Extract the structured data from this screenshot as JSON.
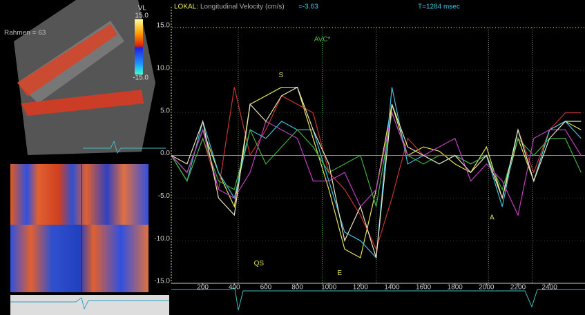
{
  "chart_data": {
    "type": "line",
    "header": {
      "mode": "LOKAL:",
      "measure": "Longitudinal Velocity (cm/s)",
      "reading": "=-3.63",
      "time": "T=1284 msec"
    },
    "x": [
      0,
      100,
      200,
      300,
      400,
      500,
      600,
      700,
      800,
      900,
      1000,
      1100,
      1200,
      1300,
      1400,
      1500,
      1600,
      1700,
      1800,
      1900,
      2000,
      2100,
      2200,
      2300,
      2400,
      2500,
      2600
    ],
    "series": [
      {
        "color": "#e6e65a",
        "values": [
          0,
          -2,
          3,
          -2,
          -6,
          6,
          7,
          8,
          8,
          2,
          -4,
          -11,
          -12,
          -4,
          6,
          0,
          1,
          0.5,
          -1,
          -2,
          1,
          -5,
          2,
          -3,
          3,
          4,
          3
        ]
      },
      {
        "color": "#c83232",
        "values": [
          0,
          -3,
          2,
          -4,
          8,
          0,
          3,
          7,
          6,
          5,
          -2,
          -4,
          -7,
          -11,
          -5,
          2,
          0,
          0,
          0,
          -1,
          0,
          -5,
          3,
          -2,
          3,
          5,
          5
        ]
      },
      {
        "color": "#40c0e0",
        "values": [
          0,
          -3,
          4,
          -2,
          -5,
          3,
          2,
          4,
          3,
          3,
          -3,
          -9,
          -10,
          -12,
          8,
          -1,
          0,
          -1,
          0,
          -1,
          0,
          -6,
          3,
          -3,
          3,
          4,
          2
        ]
      },
      {
        "color": "#40b040",
        "values": [
          0,
          -3,
          2,
          -3,
          -4,
          3,
          -1,
          1,
          3,
          1,
          -2,
          -1,
          0,
          -6,
          5,
          0,
          -1,
          0,
          0,
          -1,
          0,
          -4,
          2,
          0,
          2,
          2,
          -2
        ]
      },
      {
        "color": "#c040c0",
        "values": [
          0,
          -2,
          3,
          -4,
          -5,
          -2,
          4,
          3,
          2,
          -3,
          -3,
          -2,
          -6,
          -4,
          5,
          0,
          0,
          1,
          2,
          -3,
          -1,
          -3,
          -7,
          2,
          3,
          3,
          0
        ]
      },
      {
        "color": "#e8e8c0",
        "values": [
          0,
          -1,
          4,
          -5,
          -7,
          6,
          4,
          7,
          8,
          3,
          -1,
          -10,
          -6,
          -12,
          6,
          1,
          0,
          -1,
          0,
          -2,
          0,
          -5,
          3,
          -3,
          2,
          4,
          4
        ]
      }
    ],
    "xlim": [
      0,
      2625
    ],
    "ylim": [
      -15,
      15
    ],
    "xticks": [
      200,
      400,
      600,
      800,
      1000,
      1200,
      1400,
      1600,
      1800,
      2000,
      2200,
      2400
    ],
    "yticks": [
      {
        "value": 15,
        "label": "15.0"
      },
      {
        "value": 10,
        "label": "10.0"
      },
      {
        "value": 5,
        "label": "5.0"
      },
      {
        "value": 0,
        "label": "0.0"
      },
      {
        "value": -5,
        "label": "-5.0"
      },
      {
        "value": -10,
        "label": "-10.0"
      },
      {
        "value": -15,
        "label": "-15.0"
      }
    ],
    "grid": true,
    "vlines": [
      425,
      958,
      1300,
      2013,
      2290
    ],
    "annotations": [
      {
        "text": "S",
        "x": 696,
        "y": 9.4,
        "color": "#e6e65a"
      },
      {
        "text": "AVC*",
        "x": 958,
        "y": 13.6,
        "color": "#40c040"
      },
      {
        "text": "QS",
        "x": 556,
        "y": -12.7,
        "color": "#e6e65a"
      },
      {
        "text": "E",
        "x": 1068,
        "y": -13.8,
        "color": "#e6e65a"
      },
      {
        "text": "A",
        "x": 2035,
        "y": -7.3,
        "color": "#e6e65a"
      }
    ]
  },
  "left_panel": {
    "frame_label": "Rahmen = 63",
    "colorbar_title": "VL",
    "colorbar_max": "15.0",
    "colorbar_min": "-15.0"
  }
}
